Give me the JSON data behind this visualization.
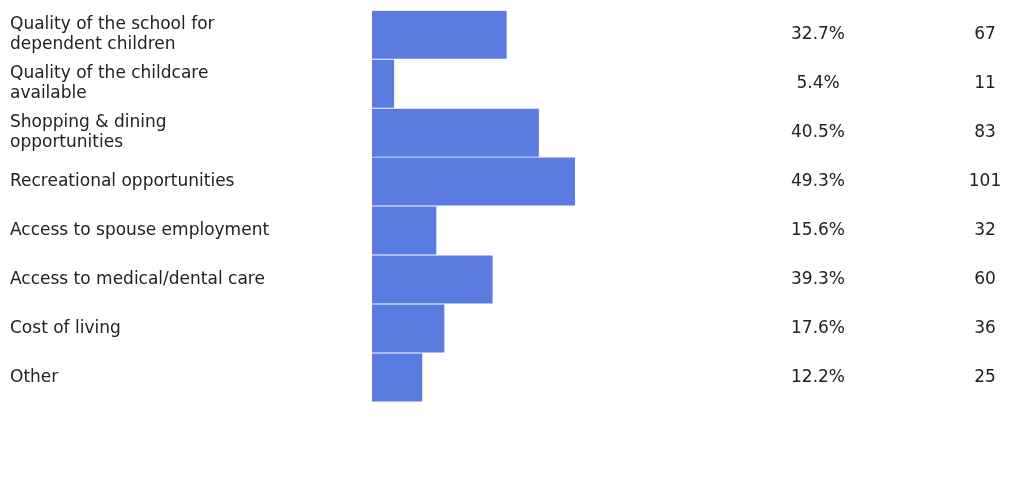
{
  "chart_data": {
    "type": "bar",
    "orientation": "horizontal",
    "categories": [
      "Quality of the school for dependent children",
      "Quality of the childcare available",
      "Shopping & dining opportunities",
      "Recreational opportunities",
      "Access to spouse employment",
      "Access to medical/dental care",
      "Cost of living",
      "Other"
    ],
    "values": [
      67,
      11,
      83,
      101,
      32,
      60,
      36,
      25
    ],
    "color": "#5b7be0",
    "data_labels": true,
    "annotations": [
      "32.7%",
      "5.4%",
      "40.5%",
      "49.3%",
      "15.6%",
      "39.3%",
      "17.6%",
      "12.2%"
    ]
  }
}
